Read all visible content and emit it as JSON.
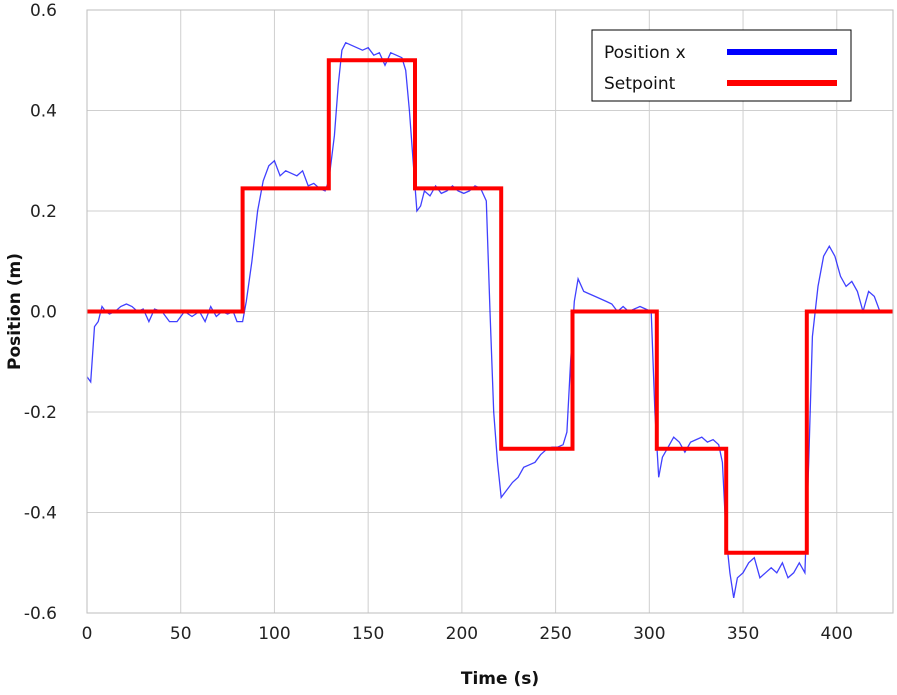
{
  "chart_data": {
    "type": "line",
    "title": "",
    "xlabel": "Time (s)",
    "ylabel": "Position (m)",
    "xlim": [
      0,
      430
    ],
    "ylim": [
      -0.6,
      0.6
    ],
    "x_ticks": [
      0,
      50,
      100,
      150,
      200,
      250,
      300,
      350,
      400
    ],
    "y_ticks": [
      -0.6,
      -0.4,
      -0.2,
      0.0,
      0.2,
      0.4,
      0.6
    ],
    "x_tick_labels": [
      "0",
      "50",
      "100",
      "150",
      "200",
      "250",
      "300",
      "350",
      "400"
    ],
    "y_tick_labels": [
      "-0.6",
      "-0.4",
      "-0.2",
      "0.0",
      "0.2",
      "0.4",
      "0.6"
    ],
    "grid": true,
    "legend": {
      "placement": "top-right"
    },
    "series": [
      {
        "name": "Position x",
        "color": "#0000ff",
        "points": [
          [
            0,
            -0.13
          ],
          [
            2,
            -0.14
          ],
          [
            4,
            -0.03
          ],
          [
            6,
            -0.02
          ],
          [
            8,
            0.01
          ],
          [
            10,
            0.0
          ],
          [
            12,
            -0.005
          ],
          [
            15,
            0.0
          ],
          [
            18,
            0.01
          ],
          [
            21,
            0.015
          ],
          [
            24,
            0.01
          ],
          [
            27,
            0.0
          ],
          [
            30,
            0.005
          ],
          [
            33,
            -0.02
          ],
          [
            36,
            0.005
          ],
          [
            40,
            0.0
          ],
          [
            44,
            -0.02
          ],
          [
            48,
            -0.02
          ],
          [
            52,
            0.0
          ],
          [
            56,
            -0.01
          ],
          [
            60,
            0.0
          ],
          [
            63,
            -0.02
          ],
          [
            66,
            0.01
          ],
          [
            69,
            -0.01
          ],
          [
            72,
            0.0
          ],
          [
            75,
            -0.005
          ],
          [
            78,
            0.0
          ],
          [
            80,
            -0.02
          ],
          [
            83,
            -0.02
          ],
          [
            85,
            0.02
          ],
          [
            88,
            0.1
          ],
          [
            91,
            0.2
          ],
          [
            94,
            0.26
          ],
          [
            97,
            0.29
          ],
          [
            100,
            0.3
          ],
          [
            103,
            0.27
          ],
          [
            106,
            0.28
          ],
          [
            109,
            0.275
          ],
          [
            112,
            0.27
          ],
          [
            115,
            0.28
          ],
          [
            118,
            0.25
          ],
          [
            121,
            0.255
          ],
          [
            124,
            0.245
          ],
          [
            127,
            0.24
          ],
          [
            129,
            0.26
          ],
          [
            132,
            0.35
          ],
          [
            134,
            0.45
          ],
          [
            136,
            0.52
          ],
          [
            138,
            0.535
          ],
          [
            141,
            0.53
          ],
          [
            144,
            0.525
          ],
          [
            147,
            0.52
          ],
          [
            150,
            0.525
          ],
          [
            153,
            0.51
          ],
          [
            156,
            0.515
          ],
          [
            159,
            0.49
          ],
          [
            162,
            0.515
          ],
          [
            165,
            0.51
          ],
          [
            168,
            0.505
          ],
          [
            170,
            0.48
          ],
          [
            172,
            0.4
          ],
          [
            174,
            0.3
          ],
          [
            176,
            0.2
          ],
          [
            178,
            0.21
          ],
          [
            180,
            0.24
          ],
          [
            183,
            0.23
          ],
          [
            186,
            0.25
          ],
          [
            189,
            0.235
          ],
          [
            192,
            0.24
          ],
          [
            195,
            0.25
          ],
          [
            198,
            0.24
          ],
          [
            201,
            0.235
          ],
          [
            204,
            0.24
          ],
          [
            207,
            0.25
          ],
          [
            210,
            0.245
          ],
          [
            213,
            0.22
          ],
          [
            215,
            0.0
          ],
          [
            217,
            -0.2
          ],
          [
            219,
            -0.3
          ],
          [
            221,
            -0.37
          ],
          [
            224,
            -0.355
          ],
          [
            227,
            -0.34
          ],
          [
            230,
            -0.33
          ],
          [
            233,
            -0.31
          ],
          [
            236,
            -0.305
          ],
          [
            239,
            -0.3
          ],
          [
            242,
            -0.285
          ],
          [
            245,
            -0.275
          ],
          [
            248,
            -0.27
          ],
          [
            251,
            -0.27
          ],
          [
            254,
            -0.265
          ],
          [
            256,
            -0.24
          ],
          [
            258,
            -0.1
          ],
          [
            260,
            0.02
          ],
          [
            262,
            0.065
          ],
          [
            265,
            0.04
          ],
          [
            268,
            0.035
          ],
          [
            271,
            0.03
          ],
          [
            274,
            0.025
          ],
          [
            277,
            0.02
          ],
          [
            280,
            0.015
          ],
          [
            283,
            0.0
          ],
          [
            286,
            0.01
          ],
          [
            289,
            0.0
          ],
          [
            292,
            0.005
          ],
          [
            295,
            0.01
          ],
          [
            298,
            0.005
          ],
          [
            301,
            0.0
          ],
          [
            303,
            -0.2
          ],
          [
            305,
            -0.33
          ],
          [
            307,
            -0.29
          ],
          [
            310,
            -0.27
          ],
          [
            313,
            -0.25
          ],
          [
            316,
            -0.26
          ],
          [
            319,
            -0.28
          ],
          [
            322,
            -0.26
          ],
          [
            325,
            -0.255
          ],
          [
            328,
            -0.25
          ],
          [
            331,
            -0.26
          ],
          [
            334,
            -0.255
          ],
          [
            337,
            -0.265
          ],
          [
            339,
            -0.3
          ],
          [
            341,
            -0.45
          ],
          [
            343,
            -0.52
          ],
          [
            345,
            -0.57
          ],
          [
            347,
            -0.53
          ],
          [
            350,
            -0.52
          ],
          [
            353,
            -0.5
          ],
          [
            356,
            -0.49
          ],
          [
            359,
            -0.53
          ],
          [
            362,
            -0.52
          ],
          [
            365,
            -0.51
          ],
          [
            368,
            -0.52
          ],
          [
            371,
            -0.5
          ],
          [
            374,
            -0.53
          ],
          [
            377,
            -0.52
          ],
          [
            380,
            -0.5
          ],
          [
            383,
            -0.52
          ],
          [
            385,
            -0.3
          ],
          [
            387,
            -0.05
          ],
          [
            390,
            0.05
          ],
          [
            393,
            0.11
          ],
          [
            396,
            0.13
          ],
          [
            399,
            0.11
          ],
          [
            402,
            0.07
          ],
          [
            405,
            0.05
          ],
          [
            408,
            0.06
          ],
          [
            411,
            0.04
          ],
          [
            414,
            0.0
          ],
          [
            417,
            0.04
          ],
          [
            420,
            0.03
          ],
          [
            423,
            0.0
          ],
          [
            426,
            0.0
          ]
        ]
      },
      {
        "name": "Setpoint",
        "color": "#ff0000",
        "points": [
          [
            0,
            0.0
          ],
          [
            83,
            0.0
          ],
          [
            83,
            0.245
          ],
          [
            129,
            0.245
          ],
          [
            129,
            0.5
          ],
          [
            175,
            0.5
          ],
          [
            175,
            0.245
          ],
          [
            221,
            0.245
          ],
          [
            221,
            -0.273
          ],
          [
            259,
            -0.273
          ],
          [
            259,
            0.0
          ],
          [
            304,
            0.0
          ],
          [
            304,
            -0.273
          ],
          [
            341,
            -0.273
          ],
          [
            341,
            -0.48
          ],
          [
            384,
            -0.48
          ],
          [
            384,
            0.0
          ],
          [
            430,
            0.0
          ]
        ]
      }
    ]
  }
}
